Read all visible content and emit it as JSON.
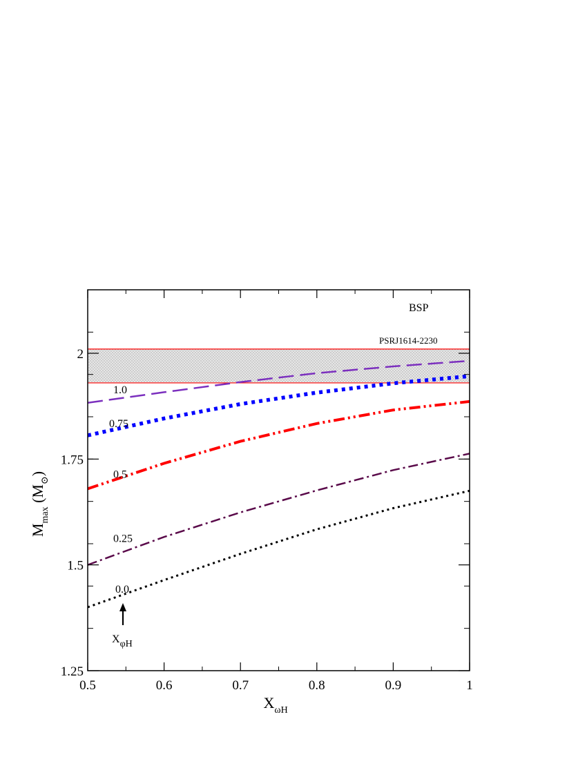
{
  "chart_data": {
    "type": "line",
    "xlabel": {
      "main": "X",
      "sub": "ωH"
    },
    "ylabel": {
      "main": "M",
      "sub": "max",
      "unit_open": " (M",
      "unit_sub": "⊙",
      "unit_close": ")"
    },
    "xlim": [
      0.5,
      1.0
    ],
    "ylim": [
      1.25,
      2.15
    ],
    "x_ticks": [
      0.5,
      0.6,
      0.7,
      0.8,
      0.9,
      1.0
    ],
    "x_tick_labels": [
      "0.5",
      "0.6",
      "0.7",
      "0.8",
      "0.9",
      "1"
    ],
    "y_ticks": [
      1.25,
      1.5,
      1.75,
      2.0
    ],
    "y_tick_labels": [
      "1.25",
      "1.5",
      "1.75",
      "2"
    ],
    "grid": false,
    "band": {
      "label": "PSRJ1614-2230",
      "ymin": 1.93,
      "ymax": 2.01,
      "fill": "#d8d8d8",
      "edge_color": "#ff0000"
    },
    "model_label": "BSP",
    "series": [
      {
        "label": "1.0",
        "color": "#7b2fbe",
        "style": "dashed",
        "x": [
          0.5,
          0.6,
          0.7,
          0.8,
          0.9,
          1.0
        ],
        "y": [
          1.883,
          1.908,
          1.932,
          1.953,
          1.969,
          1.982
        ]
      },
      {
        "label": "0.75",
        "color": "#0000ff",
        "style": "dotted-thick",
        "x": [
          0.5,
          0.6,
          0.7,
          0.8,
          0.9,
          1.0
        ],
        "y": [
          1.806,
          1.846,
          1.88,
          1.907,
          1.929,
          1.946
        ]
      },
      {
        "label": "0.5",
        "color": "#ff0000",
        "style": "dash-dot-dot",
        "x": [
          0.5,
          0.6,
          0.7,
          0.8,
          0.9,
          1.0
        ],
        "y": [
          1.68,
          1.74,
          1.792,
          1.834,
          1.866,
          1.886
        ]
      },
      {
        "label": "0.25",
        "color": "#5a0a4a",
        "style": "dash-dot",
        "x": [
          0.5,
          0.6,
          0.7,
          0.8,
          0.9,
          1.0
        ],
        "y": [
          1.5,
          1.566,
          1.624,
          1.676,
          1.724,
          1.763
        ]
      },
      {
        "label": "0.0",
        "color": "#000000",
        "style": "dotted",
        "x": [
          0.5,
          0.6,
          0.7,
          0.8,
          0.9,
          1.0
        ],
        "y": [
          1.4,
          1.464,
          1.526,
          1.584,
          1.634,
          1.675
        ]
      }
    ],
    "arrow_annotation": {
      "main": "X",
      "sub": "φH"
    }
  }
}
